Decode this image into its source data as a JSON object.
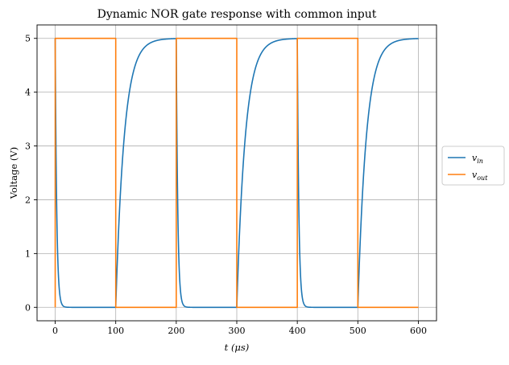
{
  "chart_data": {
    "type": "line",
    "title": "Dynamic NOR gate response with common input",
    "xlabel": "t (μs)",
    "ylabel": "Voltage (V)",
    "xlim": [
      -30,
      630
    ],
    "ylim": [
      -0.25,
      5.25
    ],
    "xticks": [
      0,
      100,
      200,
      300,
      400,
      500,
      600
    ],
    "yticks": [
      0,
      1,
      2,
      3,
      4,
      5
    ],
    "grid": true,
    "legend_position": "outside-right",
    "series": [
      {
        "name": "v_in",
        "label_base": "v",
        "label_sub": "in",
        "color": "#1f77b4",
        "model": "rc-charge-discharge",
        "period": 200,
        "high_duration": 100,
        "v_high": 5,
        "v_low": 0,
        "tau_discharge": 2.5,
        "tau_charge": 14
      },
      {
        "name": "v_out",
        "label_base": "v",
        "label_sub": "out",
        "color": "#ff7f0e",
        "model": "square",
        "x": [
          0,
          0,
          100,
          100,
          200,
          200,
          300,
          300,
          400,
          400,
          500,
          500,
          600
        ],
        "y": [
          0,
          5,
          5,
          0,
          0,
          5,
          5,
          0,
          0,
          5,
          5,
          0,
          0
        ]
      }
    ]
  }
}
